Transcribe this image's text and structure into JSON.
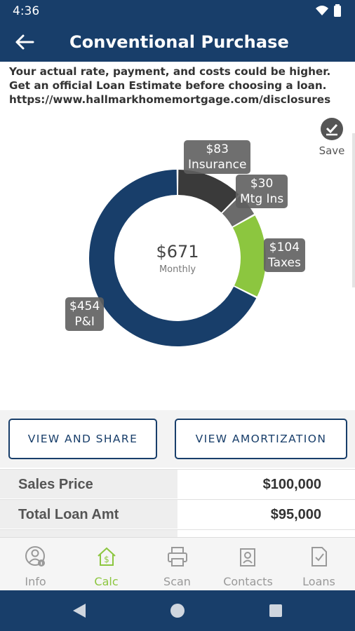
{
  "status": {
    "time": "4:36"
  },
  "header": {
    "title": "Conventional Purchase"
  },
  "disclaimer": {
    "line1": "Your actual rate, payment, and costs could be higher.",
    "line2": "Get an official Loan Estimate before choosing a loan.",
    "line3": "https://www.hallmarkhomemortgage.com/disclosures"
  },
  "save": {
    "label": "Save"
  },
  "chart_data": {
    "type": "pie",
    "center_amount": "$671",
    "center_label": "Monthly",
    "slices": [
      {
        "label": "Insurance",
        "amount": "$83",
        "value": 83,
        "color": "#3a3a3a"
      },
      {
        "label": "Mtg Ins",
        "amount": "$30",
        "value": 30,
        "color": "#6b6b6b"
      },
      {
        "label": "Taxes",
        "amount": "$104",
        "value": 104,
        "color": "#8cc63f"
      },
      {
        "label": "P&I",
        "amount": "$454",
        "value": 454,
        "color": "#183e6a"
      }
    ]
  },
  "buttons": {
    "share": "VIEW AND SHARE",
    "amortization": "VIEW AMORTIZATION"
  },
  "rows": [
    {
      "label": "Sales Price",
      "value": "$100,000"
    },
    {
      "label": "Total Loan Amt",
      "value": "$95,000"
    }
  ],
  "nav": [
    {
      "label": "Info",
      "icon": "info-person-icon"
    },
    {
      "label": "Calc",
      "icon": "calc-house-icon",
      "active": true
    },
    {
      "label": "Scan",
      "icon": "printer-icon"
    },
    {
      "label": "Contacts",
      "icon": "contacts-icon"
    },
    {
      "label": "Loans",
      "icon": "loans-document-icon"
    }
  ],
  "colors": {
    "primary": "#183e6a",
    "accent": "#8cc63f"
  }
}
